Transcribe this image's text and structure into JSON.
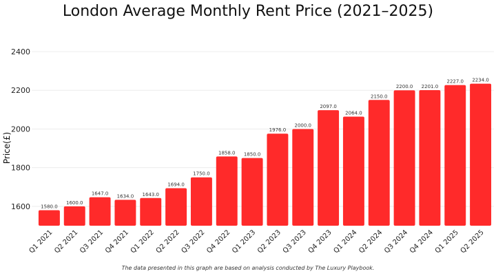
{
  "chart_data": {
    "type": "bar",
    "title": "London Average Monthly Rent Price (2021–2025)",
    "xlabel": "",
    "ylabel": "Price(£)",
    "ylim": [
      1500,
      2450
    ],
    "yticks": [
      1600,
      1800,
      2000,
      2200,
      2400
    ],
    "grid": true,
    "bar_color": "#ff2a2a",
    "categories": [
      "Q1 2021",
      "Q2 2021",
      "Q3 2021",
      "Q4 2021",
      "Q1 2022",
      "Q2 2022",
      "Q3 2022",
      "Q4 2022",
      "Q1 2023",
      "Q2 2023",
      "Q3 2023",
      "Q4 2023",
      "Q1 2024",
      "Q2 2024",
      "Q3 2024",
      "Q4 2024",
      "Q1 2025",
      "Q2 2025"
    ],
    "values": [
      1580,
      1600,
      1647,
      1634,
      1643,
      1694,
      1750,
      1858,
      1850,
      1976,
      2000,
      2097,
      2064,
      2150,
      2200,
      2201,
      2227,
      2234
    ],
    "footnote": "The data presented in this graph are based on analysis conducted by The Luxury Playbook."
  }
}
